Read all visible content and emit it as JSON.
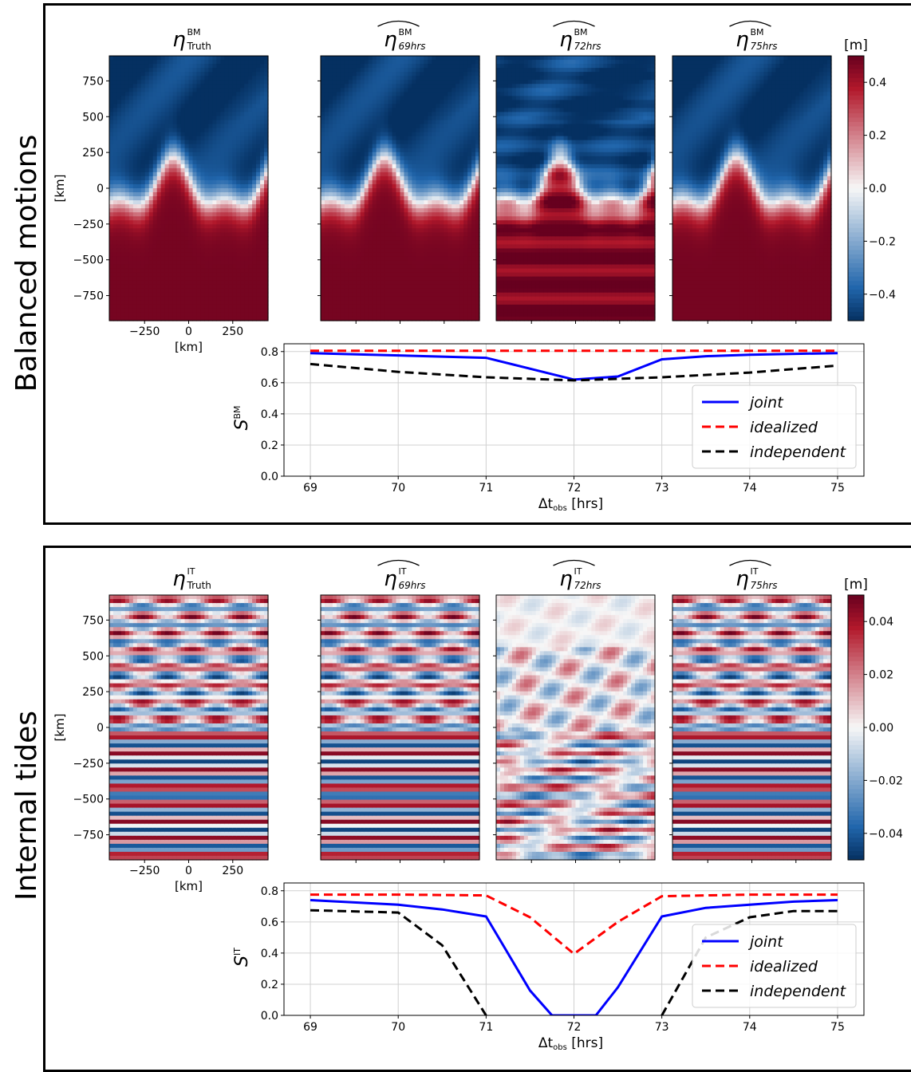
{
  "rows": [
    {
      "label": "Balanced motions",
      "maps": [
        {
          "symbol": "η",
          "sup": "BM",
          "sub": "Truth",
          "hat": false
        },
        {
          "symbol": "η",
          "sup": "BM",
          "sub": "69hrs",
          "hat": true
        },
        {
          "symbol": "η",
          "sup": "BM",
          "sub": "72hrs",
          "hat": true
        },
        {
          "symbol": "η",
          "sup": "BM",
          "sub": "75hrs",
          "hat": true
        }
      ],
      "map_y_ticks": [
        "750",
        "500",
        "250",
        "0",
        "−250",
        "−500",
        "−750"
      ],
      "map_y_tick_values": [
        750,
        500,
        250,
        0,
        -250,
        -500,
        -750
      ],
      "map_y_label": "[km]",
      "map_x_ticks": [
        "−250",
        "0",
        "250"
      ],
      "map_x_tick_values": [
        -250,
        0,
        250
      ],
      "map_x_label": "[km]",
      "colorbar": {
        "unit": "[m]",
        "ticks": [
          "0.4",
          "0.2",
          "0.0",
          "−0.2",
          "−0.4"
        ],
        "tick_values": [
          0.4,
          0.2,
          0.0,
          -0.2,
          -0.4
        ],
        "range": [
          -0.5,
          0.5
        ]
      },
      "colors": {
        "positive": "#b2182b",
        "negative": "#2166ac",
        "zero": "#f7f7f7"
      }
    },
    {
      "label": "Internal tides",
      "maps": [
        {
          "symbol": "η",
          "sup": "IT",
          "sub": "Truth",
          "hat": false
        },
        {
          "symbol": "η",
          "sup": "IT",
          "sub": "69hrs",
          "hat": true
        },
        {
          "symbol": "η",
          "sup": "IT",
          "sub": "72hrs",
          "hat": true
        },
        {
          "symbol": "η",
          "sup": "IT",
          "sub": "75hrs",
          "hat": true
        }
      ],
      "map_y_ticks": [
        "750",
        "500",
        "250",
        "0",
        "−250",
        "−500",
        "−750"
      ],
      "map_y_tick_values": [
        750,
        500,
        250,
        0,
        -250,
        -500,
        -750
      ],
      "map_y_label": "[km]",
      "map_x_ticks": [
        "−250",
        "0",
        "250"
      ],
      "map_x_tick_values": [
        -250,
        0,
        250
      ],
      "map_x_label": "[km]",
      "colorbar": {
        "unit": "[m]",
        "ticks": [
          "0.04",
          "0.02",
          "0.00",
          "−0.02",
          "−0.04"
        ],
        "tick_values": [
          0.04,
          0.02,
          0.0,
          -0.02,
          -0.04
        ],
        "range": [
          -0.05,
          0.05
        ]
      },
      "colors": {
        "positive": "#b2182b",
        "negative": "#2166ac",
        "zero": "#f7f7f7"
      }
    }
  ],
  "chart_data": [
    {
      "type": "line",
      "ylabel_main": "S",
      "ylabel_sup": "BM",
      "xlabel_main": "Δt",
      "xlabel_sub": "obs",
      "xlabel_unit": " [hrs]",
      "xlim": [
        68.7,
        75.3
      ],
      "ylim": [
        0.0,
        0.85
      ],
      "xticks": [
        69,
        70,
        71,
        72,
        73,
        74,
        75
      ],
      "yticks": [
        0.0,
        0.2,
        0.4,
        0.6,
        0.8
      ],
      "ytick_labels": [
        "0.0",
        "0.2",
        "0.4",
        "0.6",
        "0.8"
      ],
      "grid": true,
      "legend_position": "lower-right",
      "series": [
        {
          "name": "joint",
          "color": "#0000ff",
          "dash": "solid",
          "x": [
            69,
            71,
            72,
            72.5,
            73,
            73.5,
            74,
            75
          ],
          "y": [
            0.79,
            0.76,
            0.62,
            0.64,
            0.75,
            0.77,
            0.78,
            0.79
          ]
        },
        {
          "name": "idealized",
          "color": "#ff0000",
          "dash": "dashed",
          "x": [
            69,
            70,
            71,
            72,
            73,
            74,
            75
          ],
          "y": [
            0.805,
            0.805,
            0.805,
            0.805,
            0.805,
            0.805,
            0.805
          ]
        },
        {
          "name": "independent",
          "color": "#000000",
          "dash": "dashed",
          "x": [
            69,
            70,
            71,
            72,
            73,
            74,
            75
          ],
          "y": [
            0.72,
            0.67,
            0.635,
            0.615,
            0.635,
            0.665,
            0.71
          ]
        }
      ]
    },
    {
      "type": "line",
      "ylabel_main": "S",
      "ylabel_sup": "IT",
      "xlabel_main": "Δt",
      "xlabel_sub": "obs",
      "xlabel_unit": " [hrs]",
      "xlim": [
        68.7,
        75.3
      ],
      "ylim": [
        0.0,
        0.85
      ],
      "xticks": [
        69,
        70,
        71,
        72,
        73,
        74,
        75
      ],
      "yticks": [
        0.0,
        0.2,
        0.4,
        0.6,
        0.8
      ],
      "ytick_labels": [
        "0.0",
        "0.2",
        "0.4",
        "0.6",
        "0.8"
      ],
      "grid": true,
      "legend_position": "lower-right",
      "series": [
        {
          "name": "joint",
          "color": "#0000ff",
          "dash": "solid",
          "x": [
            69,
            70,
            70.5,
            71,
            71.5,
            71.75,
            72.25,
            72.5,
            73,
            73.5,
            74,
            74.5,
            75
          ],
          "y": [
            0.74,
            0.71,
            0.68,
            0.635,
            0.16,
            0.0,
            0.0,
            0.18,
            0.635,
            0.69,
            0.71,
            0.73,
            0.74
          ]
        },
        {
          "name": "idealized",
          "color": "#ff0000",
          "dash": "dashed",
          "x": [
            69,
            70,
            71,
            71.5,
            72,
            72.5,
            73,
            74,
            75
          ],
          "y": [
            0.775,
            0.775,
            0.77,
            0.63,
            0.395,
            0.6,
            0.765,
            0.775,
            0.775
          ]
        },
        {
          "name": "independent",
          "color": "#000000",
          "dash": "dashed",
          "x": [
            69,
            70,
            70.5,
            71
          ],
          "y": [
            0.675,
            0.66,
            0.45,
            0.0
          ]
        },
        {
          "name": "independent",
          "color": "#000000",
          "dash": "dashed",
          "x": [
            73,
            73.5,
            74,
            74.5,
            75
          ],
          "y": [
            0.0,
            0.5,
            0.63,
            0.67,
            0.67
          ]
        }
      ]
    }
  ]
}
